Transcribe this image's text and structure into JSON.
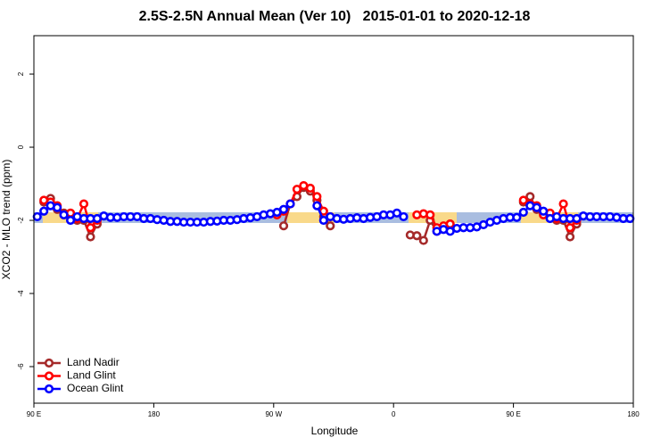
{
  "chart_data": {
    "type": "line",
    "title": "2.5S-2.5N Annual Mean (Ver 10)   2015-01-01 to 2020-12-18",
    "x_label": "Longitude",
    "y_label": "XCO2 - MLO trend (ppm)",
    "xlim": [
      90,
      540
    ],
    "xticks": [
      {
        "value": 90,
        "label": "90 E"
      },
      180,
      {
        "value": 270,
        "label": "90 W"
      },
      {
        "value": 360,
        "label": "0"
      },
      {
        "value": 450,
        "label": "90 E"
      },
      {
        "value": 540,
        "label": "180"
      }
    ],
    "ylim": [
      -7,
      3.05
    ],
    "yticks": [
      2,
      0,
      -2,
      -4,
      -6
    ],
    "legend": "bottom-left",
    "x": [
      92.5,
      97.5,
      102.5,
      107.5,
      112.5,
      117.5,
      122.5,
      127.5,
      132.5,
      137.5,
      142.5,
      147.5,
      152.5,
      157.5,
      162.5,
      167.5,
      172.5,
      177.5,
      182.5,
      187.5,
      192.5,
      197.5,
      202.5,
      207.5,
      212.5,
      217.5,
      222.5,
      227.5,
      232.5,
      237.5,
      242.5,
      247.5,
      252.5,
      257.5,
      262.5,
      267.5,
      272.5,
      277.5,
      282.5,
      287.5,
      292.5,
      297.5,
      302.5,
      307.5,
      312.5,
      317.5,
      322.5,
      327.5,
      332.5,
      337.5,
      342.5,
      347.5,
      352.5,
      357.5,
      362.5,
      367.5,
      372.5,
      377.5,
      382.5,
      387.5,
      392.5,
      397.5,
      402.5,
      407.5,
      412.5,
      417.5,
      422.5,
      427.5,
      432.5,
      437.5,
      442.5,
      447.5,
      452.5,
      457.5,
      462.5,
      467.5,
      472.5,
      477.5,
      482.5,
      487.5,
      492.5,
      497.5,
      502.5,
      507.5,
      512.5,
      517.5,
      522.5,
      527.5,
      532.5,
      537.5
    ],
    "series": [
      {
        "name": "Land Nadir",
        "color": "#a52a2a",
        "values": [
          null,
          -1.5,
          -1.4,
          -1.7,
          -1.8,
          -1.9,
          -2.0,
          -2.0,
          -2.45,
          -2.1,
          null,
          null,
          null,
          null,
          null,
          null,
          null,
          null,
          null,
          null,
          null,
          null,
          null,
          null,
          null,
          null,
          null,
          null,
          null,
          null,
          null,
          null,
          null,
          null,
          null,
          null,
          null,
          -2.15,
          -1.55,
          -1.35,
          -1.1,
          -1.2,
          -1.45,
          -1.9,
          -2.15,
          null,
          null,
          null,
          null,
          null,
          null,
          null,
          null,
          null,
          null,
          null,
          -2.4,
          -2.42,
          -2.55,
          -2.0,
          -2.3,
          -2.2,
          -2.1,
          null,
          null,
          null,
          null,
          null,
          null,
          null,
          null,
          null,
          null,
          -1.5,
          -1.35,
          -1.7,
          -1.8,
          -1.9,
          -2.0,
          -2.0,
          -2.45,
          -2.1,
          null,
          null,
          null,
          null,
          null,
          null,
          null,
          null
        ]
      },
      {
        "name": "Land Glint",
        "color": "#ff0000",
        "values": [
          null,
          -1.45,
          -1.5,
          -1.6,
          -1.85,
          -1.8,
          -1.95,
          -1.55,
          -2.2,
          -2.0,
          null,
          null,
          null,
          null,
          null,
          null,
          null,
          null,
          null,
          null,
          null,
          null,
          null,
          null,
          null,
          null,
          null,
          null,
          null,
          null,
          null,
          null,
          null,
          null,
          null,
          null,
          -1.85,
          -1.75,
          -1.55,
          -1.15,
          -1.05,
          -1.12,
          -1.35,
          -1.75,
          -1.9,
          null,
          null,
          null,
          null,
          null,
          null,
          null,
          null,
          null,
          null,
          null,
          null,
          -1.85,
          -1.82,
          -1.85,
          -2.2,
          -2.15,
          -2.1,
          null,
          null,
          null,
          null,
          null,
          null,
          null,
          null,
          null,
          null,
          -1.45,
          -1.55,
          -1.6,
          -1.85,
          -1.8,
          -1.95,
          -1.55,
          -2.2,
          -2.0,
          null,
          null,
          null,
          null,
          null,
          null,
          null,
          null
        ]
      },
      {
        "name": "Ocean Glint",
        "color": "#0000ff",
        "values": [
          -1.9,
          -1.75,
          -1.6,
          -1.65,
          -1.85,
          -2.0,
          -1.9,
          -1.95,
          -1.95,
          -1.95,
          -1.88,
          -1.92,
          -1.92,
          -1.9,
          -1.9,
          -1.9,
          -1.95,
          -1.95,
          -1.98,
          -2.0,
          -2.03,
          -2.03,
          -2.05,
          -2.05,
          -2.05,
          -2.05,
          -2.03,
          -2.02,
          -2.0,
          -2.0,
          -1.98,
          -1.95,
          -1.93,
          -1.9,
          -1.85,
          -1.82,
          -1.78,
          -1.7,
          -1.55,
          null,
          null,
          null,
          -1.6,
          -2.0,
          -1.9,
          -1.95,
          -1.97,
          -1.95,
          -1.93,
          -1.95,
          -1.92,
          -1.9,
          -1.85,
          -1.85,
          -1.8,
          -1.9,
          null,
          null,
          null,
          null,
          -2.3,
          -2.25,
          -2.3,
          -2.22,
          -2.2,
          -2.2,
          -2.18,
          -2.12,
          -2.05,
          -2.0,
          -1.95,
          -1.92,
          -1.92,
          -1.78,
          -1.6,
          -1.65,
          -1.75,
          -1.95,
          -1.9,
          -1.95,
          -1.95,
          -1.95,
          -1.88,
          -1.9,
          -1.9,
          -1.9,
          -1.9,
          -1.92,
          -1.95,
          -1.95
        ]
      }
    ]
  }
}
